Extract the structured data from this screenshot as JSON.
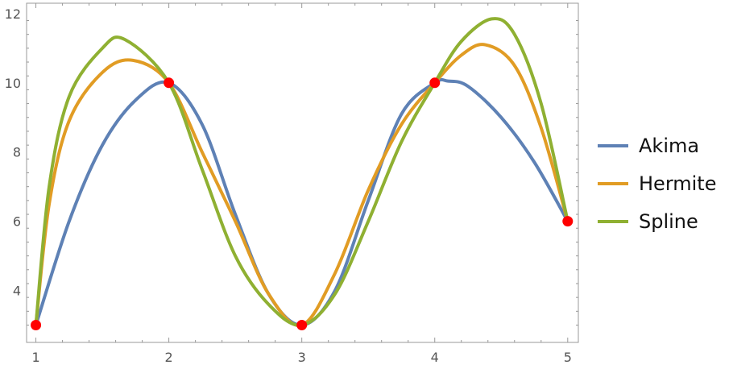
{
  "chart_data": {
    "type": "line",
    "title": "",
    "xlabel": "",
    "ylabel": "",
    "xlim": [
      0.93,
      5.08
    ],
    "ylim": [
      2.5,
      12.3
    ],
    "x_ticks": [
      1,
      2,
      3,
      4,
      5
    ],
    "y_ticks": [
      4,
      6,
      8,
      10,
      12
    ],
    "x_tick_labels": [
      "1",
      "2",
      "3",
      "4",
      "5"
    ],
    "y_tick_labels": [
      "4",
      "6",
      "8",
      "10",
      "12"
    ],
    "grid": false,
    "legend_position": "right",
    "points": {
      "x": [
        1,
        2,
        3,
        4,
        5
      ],
      "y": [
        3,
        10,
        3,
        10,
        6
      ],
      "color": "#ff0000"
    },
    "series": [
      {
        "name": "Akima",
        "color": "#5e81b5",
        "x": [
          1,
          1.25,
          1.5,
          1.75,
          2,
          2.25,
          2.5,
          2.75,
          3,
          3.25,
          3.5,
          3.75,
          4,
          4.1,
          4.25,
          4.5,
          4.75,
          5
        ],
        "y": [
          3,
          6.0,
          8.2,
          9.5,
          10.0,
          8.8,
          6.2,
          3.9,
          3.0,
          4.0,
          6.6,
          9.1,
          10.0,
          10.05,
          9.9,
          9.0,
          7.7,
          6.0
        ]
      },
      {
        "name": "Hermite",
        "color": "#e19c24",
        "x": [
          1,
          1.1,
          1.25,
          1.5,
          1.73,
          2,
          2.25,
          2.5,
          2.75,
          3,
          3.25,
          3.5,
          3.75,
          4,
          4.2,
          4.38,
          4.6,
          4.8,
          5
        ],
        "y": [
          3,
          6.5,
          8.9,
          10.3,
          10.65,
          10.0,
          8.0,
          6.0,
          3.9,
          3.0,
          4.5,
          6.9,
          8.8,
          10.0,
          10.8,
          11.1,
          10.5,
          8.7,
          6.0
        ]
      },
      {
        "name": "Spline",
        "color": "#8fb032",
        "x": [
          1,
          1.1,
          1.25,
          1.5,
          1.67,
          2,
          2.25,
          2.5,
          2.75,
          3,
          3.25,
          3.5,
          3.75,
          4,
          4.2,
          4.43,
          4.6,
          4.8,
          5
        ],
        "y": [
          3,
          7.0,
          9.6,
          11.0,
          11.25,
          10.0,
          7.5,
          5.0,
          3.6,
          3.0,
          3.9,
          6.0,
          8.3,
          10.0,
          11.2,
          11.85,
          11.4,
          9.4,
          6.0
        ]
      }
    ]
  }
}
